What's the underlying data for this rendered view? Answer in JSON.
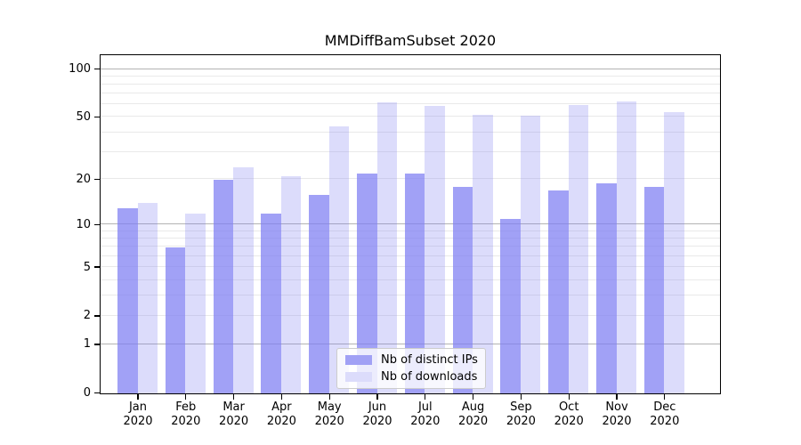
{
  "title": "MMDiffBamSubset 2020",
  "chart_data": {
    "type": "bar",
    "title": "MMDiffBamSubset 2020",
    "categories": [
      "Jan",
      "Feb",
      "Mar",
      "Apr",
      "May",
      "Jun",
      "Jul",
      "Aug",
      "Sep",
      "Oct",
      "Nov",
      "Dec"
    ],
    "category_year": "2020",
    "series": [
      {
        "name": "Nb of distinct IPs",
        "values": [
          13,
          7,
          20,
          12,
          16,
          22,
          22,
          18,
          11,
          17,
          19,
          18
        ],
        "color": "rgba(125,125,242,0.72)",
        "color_hex": "#a1a1f5"
      },
      {
        "name": "Nb of downloads",
        "values": [
          14,
          12,
          24,
          21,
          44,
          62,
          59,
          52,
          51,
          60,
          63,
          54
        ],
        "color": "rgba(125,125,242,0.27)",
        "color_hex": "#dcdcfb"
      }
    ],
    "xlabel": "",
    "ylabel": "",
    "yscale": "log1p",
    "ylim": [
      0,
      125
    ],
    "ytick_labels": [
      100,
      50,
      20,
      10,
      5,
      2,
      1,
      0
    ],
    "minor_gridlines": [
      2,
      3,
      4,
      5,
      6,
      7,
      8,
      9,
      20,
      30,
      40,
      50,
      60,
      70,
      80,
      90
    ],
    "decade_gridlines": [
      1,
      10,
      100
    ],
    "grid": true,
    "legend_position": "lower center"
  },
  "legend": {
    "items": [
      "Nb of distinct IPs",
      "Nb of downloads"
    ]
  },
  "colors": {
    "bar_dark": "#a1a1f5",
    "bar_light": "#dcdcfb",
    "grid_minor": "#e9e9e9",
    "grid_decade": "#b3b3b3",
    "frame": "#000000",
    "text": "#000000",
    "legend_border": "#cccccc"
  }
}
